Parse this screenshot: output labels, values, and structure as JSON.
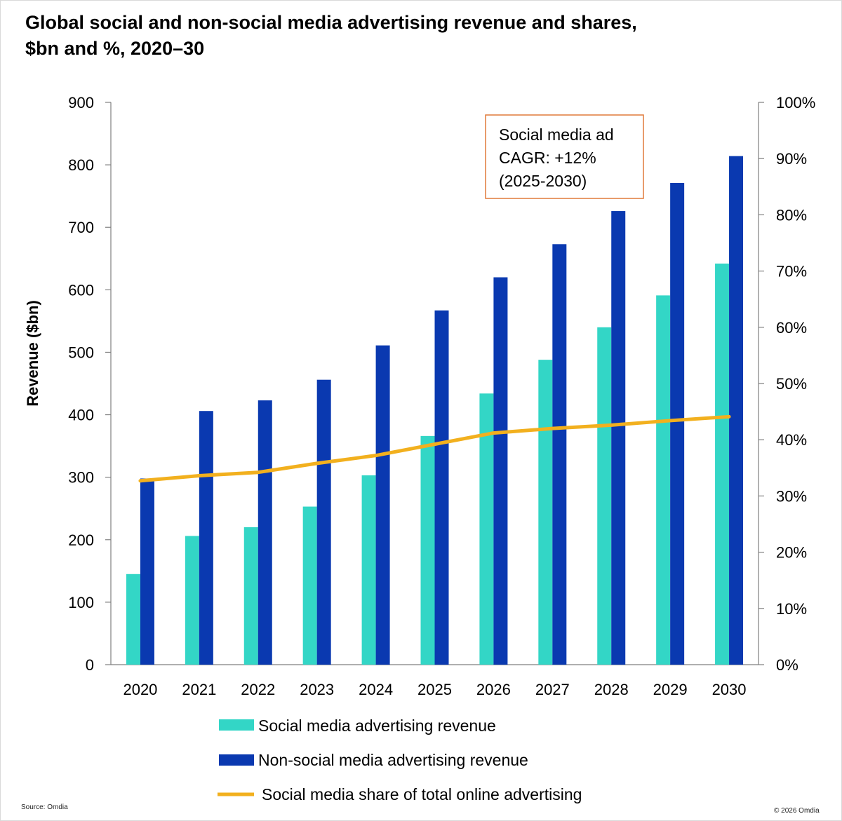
{
  "title_line1": "Global social and non-social media advertising revenue and shares,",
  "title_line2": "$bn and %, 2020–30",
  "source": "Source: Omdia",
  "copyright": "© 2026 Omdia",
  "colors": {
    "social": "#33d6c6",
    "non_social": "#0a39b0",
    "share_line": "#f2b01e",
    "annotation_border": "#e07a3a",
    "axis": "#7f7f7f"
  },
  "chart_data": {
    "type": "bar",
    "categories": [
      "2020",
      "2021",
      "2022",
      "2023",
      "2024",
      "2025",
      "2026",
      "2027",
      "2028",
      "2029",
      "2030"
    ],
    "series": [
      {
        "name": "Social media advertising revenue",
        "type": "bar",
        "axis": "left",
        "values": [
          145,
          206,
          220,
          253,
          303,
          366,
          434,
          488,
          540,
          591,
          642
        ]
      },
      {
        "name": "Non-social media advertising revenue",
        "type": "bar",
        "axis": "left",
        "values": [
          298,
          406,
          423,
          456,
          511,
          567,
          620,
          673,
          726,
          771,
          814
        ]
      },
      {
        "name": "Social media share of total online advertising",
        "type": "line",
        "axis": "right",
        "values": [
          32.7,
          33.6,
          34.2,
          35.8,
          37.2,
          39.2,
          41.2,
          42.0,
          42.6,
          43.4,
          44.1
        ]
      }
    ],
    "ylabel": "Revenue ($bn)",
    "ylim": [
      0,
      900
    ],
    "yticks": [
      "0",
      "100",
      "200",
      "300",
      "400",
      "500",
      "600",
      "700",
      "800",
      "900"
    ],
    "y2lim": [
      0,
      100
    ],
    "y2ticks": [
      "0%",
      "10%",
      "20%",
      "30%",
      "40%",
      "50%",
      "60%",
      "70%",
      "80%",
      "90%",
      "100%"
    ],
    "legend_position": "bottom",
    "annotation": {
      "lines": [
        "Social media ad",
        "CAGR: +12%",
        "(2025-2030)"
      ],
      "position": "top-right"
    }
  }
}
